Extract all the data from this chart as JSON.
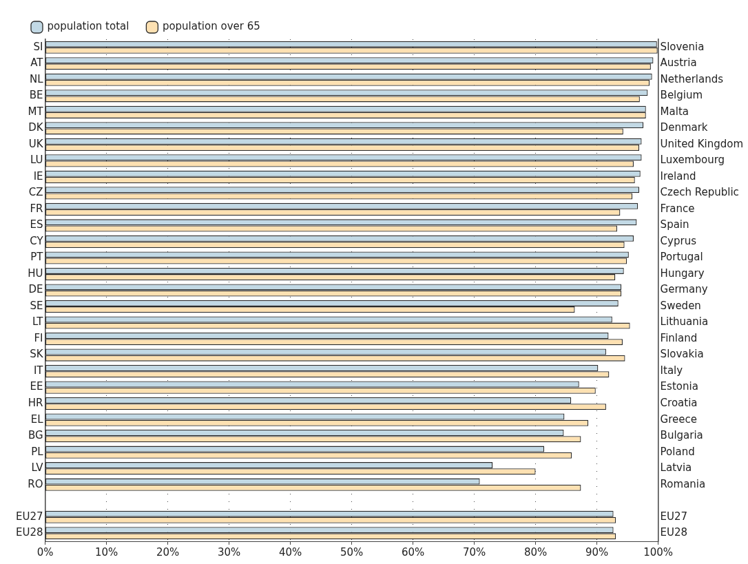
{
  "chart_data": {
    "type": "bar",
    "orientation": "horizontal",
    "categories": [
      "SI",
      "AT",
      "NL",
      "BE",
      "MT",
      "DK",
      "UK",
      "LU",
      "IE",
      "CZ",
      "FR",
      "ES",
      "CY",
      "PT",
      "HU",
      "DE",
      "SE",
      "LT",
      "FI",
      "SK",
      "IT",
      "EE",
      "HR",
      "EL",
      "BG",
      "PL",
      "LV",
      "RO",
      null,
      "EU27",
      "EU28"
    ],
    "y2_categories": [
      "Slovenia",
      "Austria",
      "Netherlands",
      "Belgium",
      "Malta",
      "Denmark",
      "United Kingdom",
      "Luxembourg",
      "Ireland",
      "Czech Republic",
      "France",
      "Spain",
      "Cyprus",
      "Portugal",
      "Hungary",
      "Germany",
      "Sweden",
      "Lithuania",
      "Finland",
      "Slovakia",
      "Italy",
      "Estonia",
      "Croatia",
      "Greece",
      "Bulgaria",
      "Poland",
      "Latvia",
      "Romania",
      null,
      "EU27",
      "EU28"
    ],
    "series": [
      {
        "name": "population total",
        "color": "#c2d9e5",
        "values": [
          99.8,
          99.2,
          99.0,
          98.3,
          98.0,
          97.6,
          97.3,
          97.3,
          97.1,
          96.9,
          96.7,
          96.5,
          96.0,
          95.2,
          94.4,
          94.0,
          93.5,
          92.5,
          91.9,
          91.5,
          90.2,
          87.1,
          85.8,
          84.7,
          84.6,
          81.4,
          73.0,
          70.9,
          null,
          92.7,
          92.7
        ]
      },
      {
        "name": "population over 65",
        "color": "#fde1b2",
        "values": [
          99.9,
          98.8,
          98.6,
          97.0,
          98.0,
          94.3,
          96.9,
          96.0,
          96.2,
          95.8,
          93.8,
          93.3,
          94.5,
          94.9,
          93.0,
          94.0,
          86.4,
          95.4,
          94.2,
          94.6,
          92.0,
          89.8,
          91.5,
          88.6,
          87.4,
          85.9,
          80.0,
          87.4,
          null,
          93.1,
          93.1
        ]
      }
    ],
    "xlim": [
      0,
      100
    ],
    "xticks": [
      {
        "value": 0,
        "label": "0%"
      },
      {
        "value": 10,
        "label": "10%"
      },
      {
        "value": 20,
        "label": "20%"
      },
      {
        "value": 30,
        "label": "30%"
      },
      {
        "value": 40,
        "label": "40%"
      },
      {
        "value": 50,
        "label": "50%"
      },
      {
        "value": 60,
        "label": "60%"
      },
      {
        "value": 70,
        "label": "70%"
      },
      {
        "value": 80,
        "label": "80%"
      },
      {
        "value": 90,
        "label": "90%"
      },
      {
        "value": 100,
        "label": "100%"
      }
    ],
    "grid": "x",
    "legend": "top left"
  }
}
